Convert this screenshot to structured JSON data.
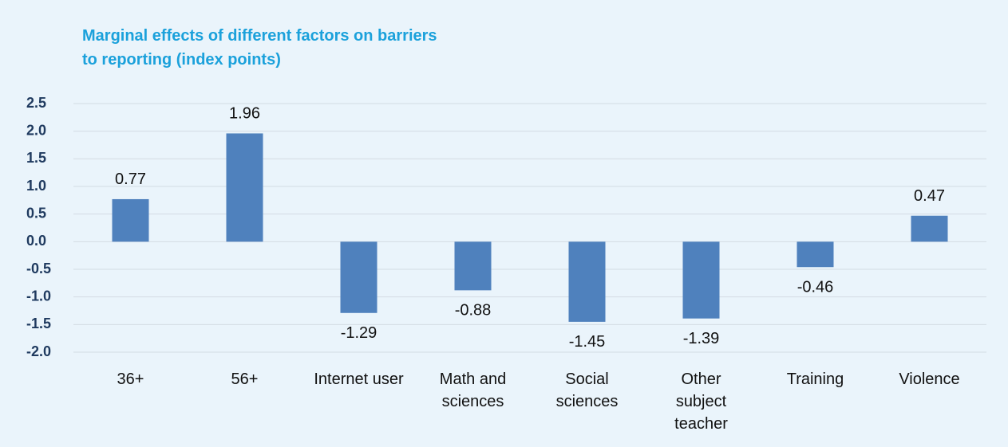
{
  "chart_data": {
    "type": "bar",
    "title": "Marginal effects of different factors on barriers to reporting (index points)",
    "categories": [
      "36+",
      "56+",
      "Internet user",
      "Math and\nsciences",
      "Social\nsciences",
      "Other\nsubject\nteacher",
      "Training",
      "Violence"
    ],
    "values": [
      0.77,
      1.96,
      -1.29,
      -0.88,
      -1.45,
      -1.39,
      -0.46,
      0.47
    ],
    "color": "#4f81bd",
    "ylim": [
      -2.0,
      2.5
    ],
    "yticks": [
      2.5,
      {
        "value": 2.0,
        "label": "2.0"
      },
      1.5,
      {
        "value": 1.0,
        "label": "1.0"
      },
      0.5,
      {
        "value": 0.0,
        "label": "0.0"
      },
      -0.5,
      {
        "value": -1.0,
        "label": "-1.0"
      },
      -1.5,
      {
        "value": -2.0,
        "label": "-2.0"
      }
    ],
    "grid": true
  }
}
